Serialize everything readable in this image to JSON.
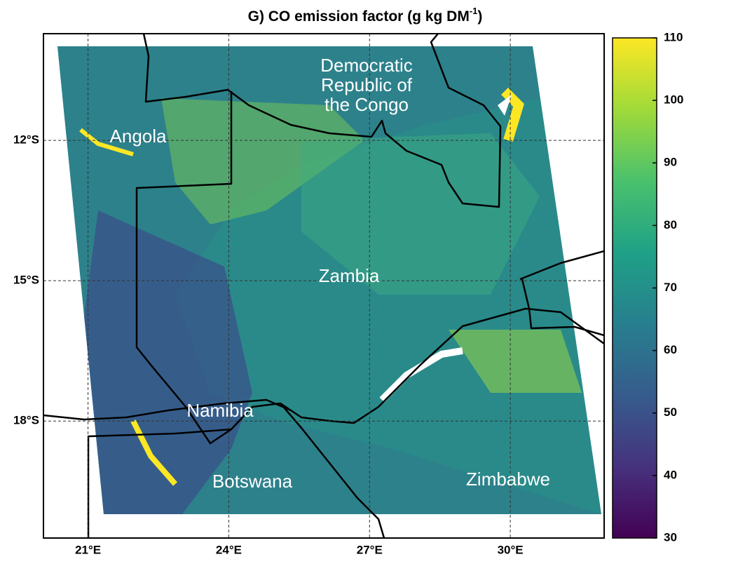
{
  "title": {
    "text": "G) CO emission factor (g kg DM",
    "superscript": "-1",
    "suffix": ")"
  },
  "map": {
    "xlim": [
      20.05,
      32
    ],
    "ylim": [
      -20.5,
      -9.72
    ],
    "xticks": [
      {
        "value": 21,
        "label": "21°E"
      },
      {
        "value": 24,
        "label": "24°E"
      },
      {
        "value": 27,
        "label": "27°E"
      },
      {
        "value": 30,
        "label": "30°E"
      }
    ],
    "yticks": [
      {
        "value": -12,
        "label": "12°S"
      },
      {
        "value": -15,
        "label": "15°S"
      },
      {
        "value": -18,
        "label": "18°S"
      }
    ],
    "grid": true,
    "labels": [
      {
        "lines": [
          "Angola"
        ]
      },
      {
        "lines": [
          "Democratic",
          "Republic of",
          "the Congo"
        ]
      },
      {
        "lines": [
          "Zambia"
        ]
      },
      {
        "lines": [
          "Namibia"
        ]
      },
      {
        "lines": [
          "Botswana"
        ]
      },
      {
        "lines": [
          "Zimbabwe"
        ]
      }
    ]
  },
  "colorbar": {
    "range": [
      30,
      110
    ],
    "ticks": [
      30,
      40,
      50,
      60,
      70,
      80,
      90,
      100,
      110
    ],
    "colors": [
      "#440154",
      "#46327e",
      "#365c8d",
      "#277f8e",
      "#1fa187",
      "#4ac16d",
      "#a0da39",
      "#fde725"
    ]
  }
}
